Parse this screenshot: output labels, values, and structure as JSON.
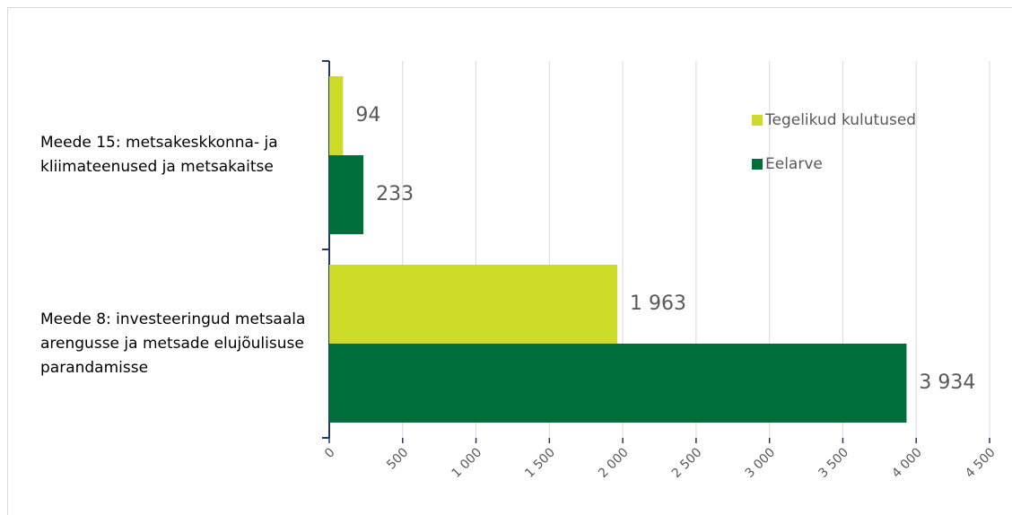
{
  "chart_data": {
    "type": "bar",
    "orientation": "horizontal",
    "categories": [
      "Meede 15: metsakeskkonna- ja kliimateenused ja metsakaitse",
      "Meede 8: investeeringud metsaala arengusse ja metsade elujõulisuse parandamisse"
    ],
    "series": [
      {
        "name": "Tegelikud kulutused",
        "color": "#cddc29",
        "values": [
          94,
          1963
        ],
        "value_labels": [
          "94",
          "1 963"
        ]
      },
      {
        "name": "Eelarve",
        "color": "#006e38",
        "values": [
          233,
          3934
        ],
        "value_labels": [
          "233",
          "3 934"
        ]
      }
    ],
    "xlim": [
      0,
      4500
    ],
    "xticks": [
      0,
      500,
      {
        "value": 1000,
        "label": "1 000"
      },
      {
        "value": 1500,
        "label": "1 500"
      },
      {
        "value": 2000,
        "label": "2 000"
      },
      {
        "value": 2500,
        "label": "2 500"
      },
      {
        "value": 3000,
        "label": "3 000"
      },
      {
        "value": 3500,
        "label": "3 500"
      },
      {
        "value": 4000,
        "label": "4 000"
      },
      {
        "value": 4500,
        "label": "4 500"
      }
    ],
    "grid": true,
    "legend": "top-right"
  }
}
